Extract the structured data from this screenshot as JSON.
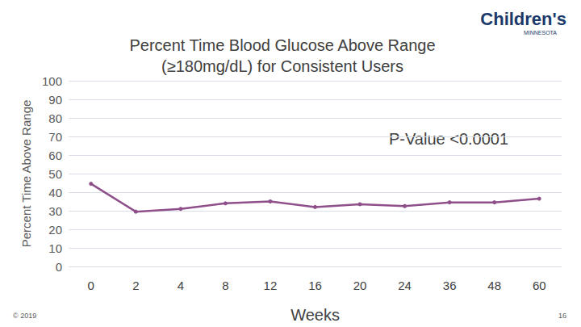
{
  "chart_data": {
    "type": "line",
    "title": "Percent Time Blood Glucose Above Range\n(≥180mg/dL) for Consistent Users",
    "x_label": "Weeks",
    "y_label": "Percent Time Above Range",
    "categories": [
      "0",
      "2",
      "4",
      "8",
      "12",
      "16",
      "20",
      "24",
      "36",
      "48",
      "60"
    ],
    "values": [
      44.5,
      29.5,
      31,
      34,
      35,
      32,
      33.5,
      32.5,
      34.5,
      34.5,
      36.5
    ],
    "color": "#8e4f8a",
    "marker": "circle",
    "ylim": [
      0,
      100
    ],
    "yticks": [
      0,
      10,
      20,
      30,
      40,
      50,
      60,
      70,
      80,
      90,
      100
    ],
    "grid": true,
    "annotations": [
      "P-Value <0.0001"
    ],
    "logo": "Children's",
    "logo_subtitle": "MINNESOTA",
    "copyright": "© 2019",
    "page_number": "16"
  }
}
